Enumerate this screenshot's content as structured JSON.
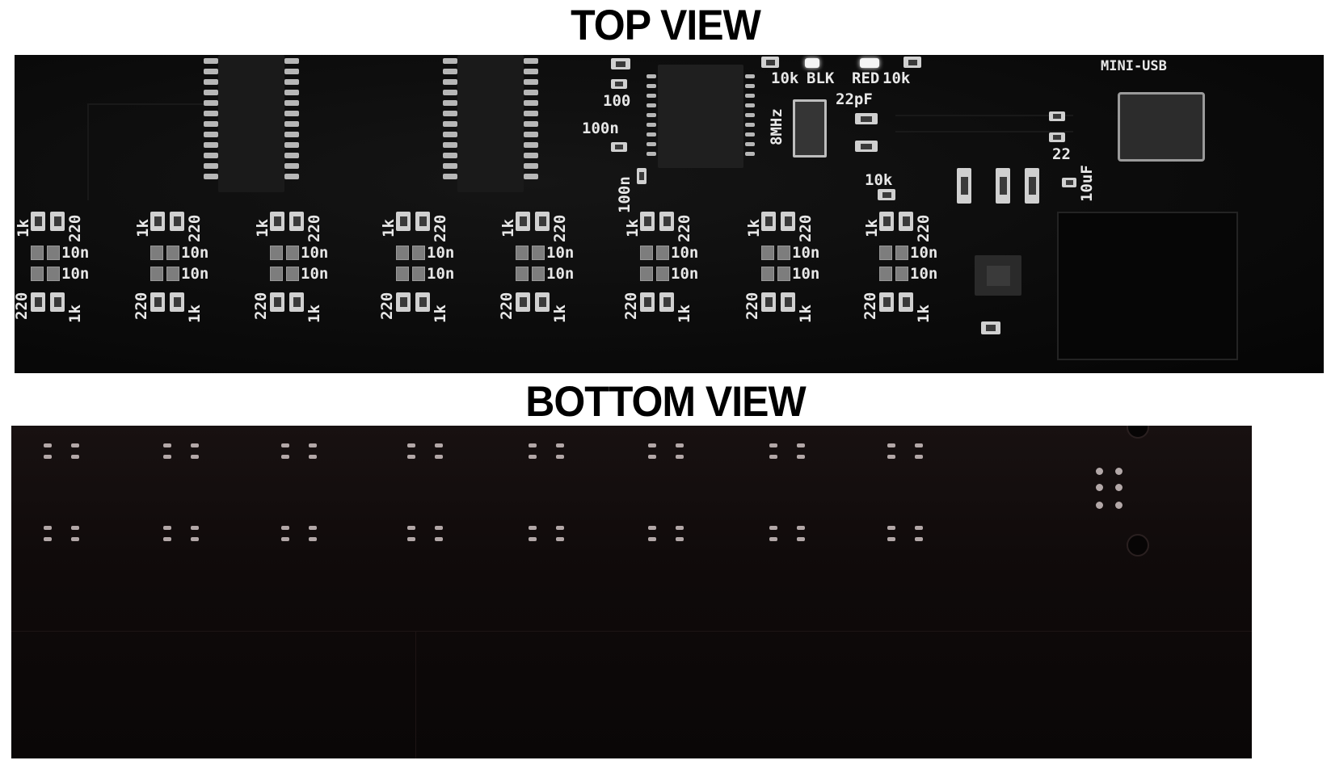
{
  "titles": {
    "top": "TOP VIEW",
    "bottom": "BOTTOM VIEW"
  },
  "top_board": {
    "labels": {
      "r_10k_a": "10k",
      "led_blk": "BLK",
      "led_red": "RED",
      "r_10k_b": "10k",
      "mini_usb": "MINI-USB",
      "c_100": "100",
      "c_100n_a": "100n",
      "c_100n_b": "100n",
      "c_22pf": "22pF",
      "crystal": "8MHz",
      "r_10k_c": "10k",
      "r_22": "22",
      "c_10uf": "10uF"
    },
    "channels": [
      {
        "r1": "1k",
        "r2": "220",
        "c1": "10n",
        "c2": "10n",
        "r3": "220",
        "r4": "1k"
      },
      {
        "r1": "1k",
        "r2": "220",
        "c1": "10n",
        "c2": "10n",
        "r3": "220",
        "r4": "1k"
      },
      {
        "r1": "1k",
        "r2": "220",
        "c1": "10n",
        "c2": "10n",
        "r3": "220",
        "r4": "1k"
      },
      {
        "r1": "1k",
        "r2": "220",
        "c1": "10n",
        "c2": "10n",
        "r3": "220",
        "r4": "1k"
      },
      {
        "r1": "1k",
        "r2": "220",
        "c1": "10n",
        "c2": "10n",
        "r3": "220",
        "r4": "1k"
      },
      {
        "r1": "1k",
        "r2": "220",
        "c1": "10n",
        "c2": "10n",
        "r3": "220",
        "r4": "1k"
      },
      {
        "r1": "1k",
        "r2": "220",
        "c1": "10n",
        "c2": "10n",
        "r3": "220",
        "r4": "1k"
      },
      {
        "r1": "1k",
        "r2": "220",
        "c1": "10n",
        "c2": "10n",
        "r3": "220",
        "r4": "1k"
      }
    ]
  },
  "colors": {
    "board": "#0b0b0b",
    "silkscreen": "#e8e8e8",
    "bottom_board": "#120c0c"
  }
}
